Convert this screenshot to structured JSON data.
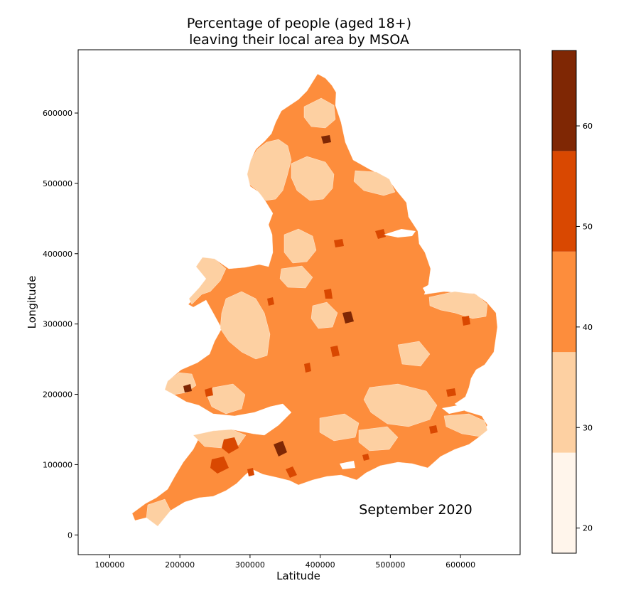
{
  "title": {
    "line1": "Percentage of people (aged 18+)",
    "line2": "leaving their local area by MSOA"
  },
  "annotation": "September 2020",
  "chart_data": {
    "type": "choropleth",
    "xlabel": "Latitude",
    "ylabel": "Longitude",
    "xlim": [
      55000,
      685000
    ],
    "ylim": [
      -28000,
      690000
    ],
    "xticks": [
      100000,
      200000,
      300000,
      400000,
      500000,
      600000
    ],
    "yticks": [
      0,
      100000,
      200000,
      300000,
      400000,
      500000,
      600000
    ],
    "xtick_labels": [
      "100000",
      "200000",
      "300000",
      "400000",
      "500000",
      "600000"
    ],
    "ytick_labels": [
      "0",
      "100000",
      "200000",
      "300000",
      "400000",
      "500000",
      "600000"
    ],
    "colorbar": {
      "range": [
        17.5,
        67.5
      ],
      "ticks": [
        20,
        30,
        40,
        50,
        60
      ],
      "tick_labels": [
        "20",
        "30",
        "40",
        "50",
        "60"
      ],
      "bins": [
        {
          "from": 17.5,
          "to": 27.5,
          "color": "#fff5eb"
        },
        {
          "from": 27.5,
          "to": 37.5,
          "color": "#fdd0a2"
        },
        {
          "from": 37.5,
          "to": 47.5,
          "color": "#fd8d3c"
        },
        {
          "from": 47.5,
          "to": 57.5,
          "color": "#d94801"
        },
        {
          "from": 57.5,
          "to": 67.5,
          "color": "#7f2704"
        }
      ]
    }
  }
}
